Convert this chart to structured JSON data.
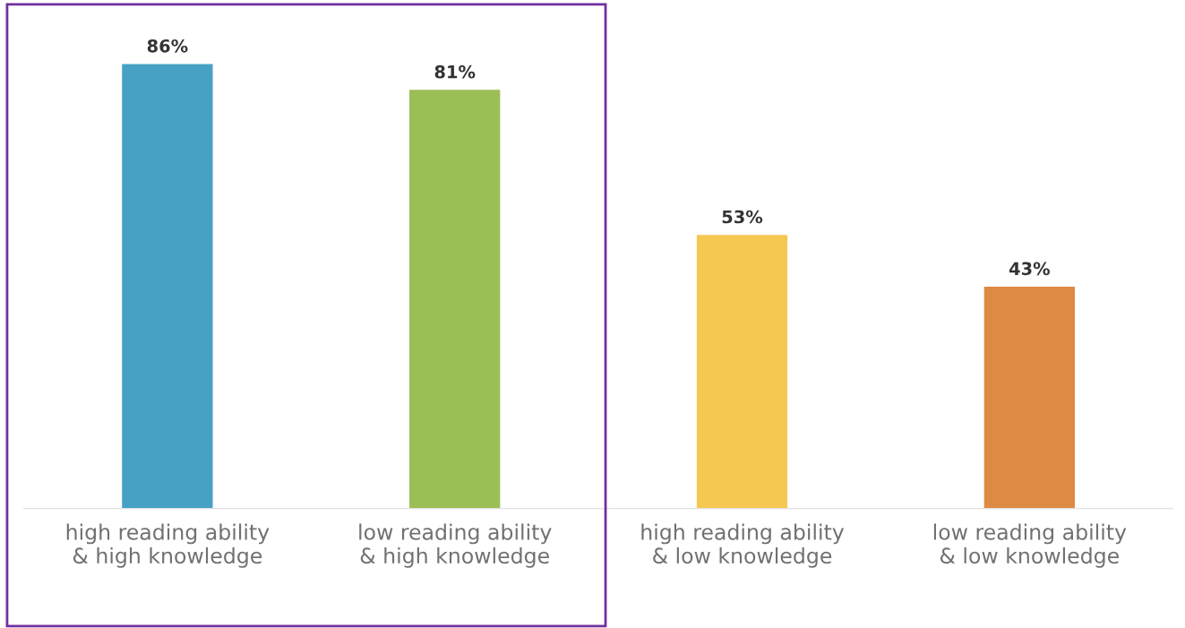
{
  "chart_data": {
    "type": "bar",
    "categories": [
      "high reading ability\n& high knowledge",
      "low reading ability\n& high knowledge",
      "high reading ability\n& low knowledge",
      "low reading ability\n& low knowledge"
    ],
    "values": [
      86,
      81,
      53,
      43
    ],
    "colors": [
      "#46a1c5",
      "#9bbe55",
      "#f5c851",
      "#de8a45"
    ],
    "value_labels": [
      "86%",
      "81%",
      "53%",
      "43%"
    ],
    "tick_labels": "x",
    "grid": false,
    "legend": false
  }
}
